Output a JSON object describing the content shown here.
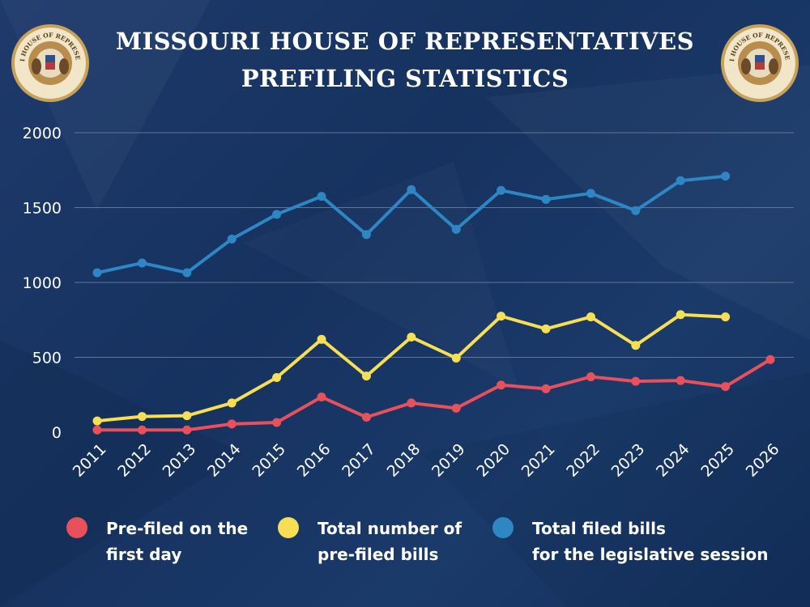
{
  "header": {
    "title_line1": "MISSOURI HOUSE OF REPRESENTATIVES",
    "title_line2": "PREFILING STATISTICS",
    "seal_text": "MISSOURI HOUSE OF REPRESENTATIVES"
  },
  "colors": {
    "prefiled_first_day": "#e8505b",
    "total_prefiled": "#f6df55",
    "total_filed": "#2f86c4",
    "gridline": "#5f7599"
  },
  "chart_data": {
    "type": "line",
    "title": "MISSOURI HOUSE OF REPRESENTATIVES PREFILING STATISTICS",
    "xlabel": "",
    "ylabel": "",
    "ylim": [
      0,
      2000
    ],
    "yticks": [
      0,
      500,
      1000,
      1500,
      2000
    ],
    "grid": true,
    "legend_position": "bottom",
    "categories": [
      "2011",
      "2012",
      "2013",
      "2014",
      "2015",
      "2016",
      "2017",
      "2018",
      "2019",
      "2020",
      "2021",
      "2022",
      "2023",
      "2024",
      "2025",
      "2026"
    ],
    "series": [
      {
        "name": "Total filed bills for the legislative session",
        "color_key": "total_filed",
        "values": [
          1065,
          1130,
          1065,
          1290,
          1455,
          1575,
          1320,
          1620,
          1355,
          1615,
          1555,
          1595,
          1480,
          1680,
          1710,
          null
        ]
      },
      {
        "name": "Total number of pre-filed bills",
        "color_key": "total_prefiled",
        "values": [
          75,
          105,
          110,
          195,
          365,
          620,
          375,
          635,
          495,
          775,
          690,
          770,
          580,
          785,
          770,
          null
        ]
      },
      {
        "name": "Pre-filed on the first day",
        "color_key": "prefiled_first_day",
        "values": [
          15,
          15,
          15,
          55,
          65,
          235,
          100,
          195,
          160,
          315,
          290,
          370,
          340,
          345,
          305,
          485
        ]
      }
    ]
  },
  "legend": [
    {
      "line1": "Pre-filed on the",
      "line2": "first day",
      "color_key": "prefiled_first_day"
    },
    {
      "line1": "Total number of",
      "line2": "pre-filed bills",
      "color_key": "total_prefiled"
    },
    {
      "line1": "Total filed bills",
      "line2": "for the legislative session",
      "color_key": "total_filed"
    }
  ]
}
